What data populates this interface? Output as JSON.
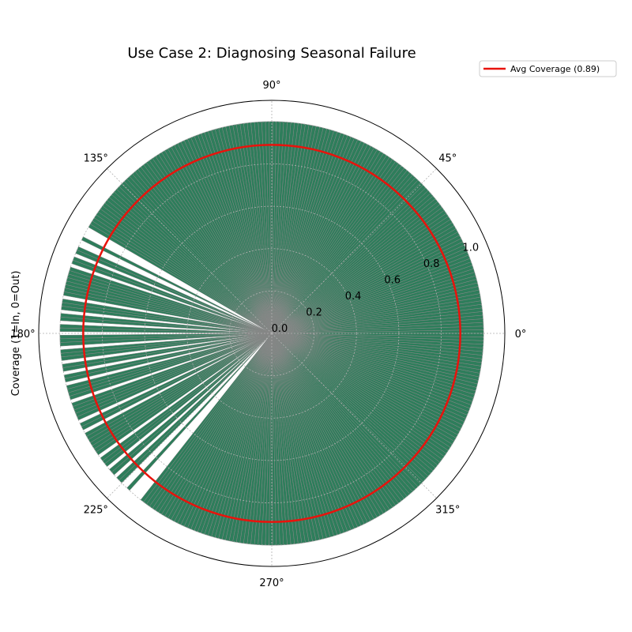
{
  "chart_data": {
    "type": "bar",
    "projection": "polar",
    "title": "Use Case 2: Diagnosing Seasonal Failure",
    "ylabel": "Coverage (1=In, 0=Out)",
    "ylim": [
      0.0,
      1.1
    ],
    "radial_ticks": [
      "0.0",
      "0.2",
      "0.4",
      "0.6",
      "0.8",
      "1.0"
    ],
    "radial_tick_values": [
      0.0,
      0.2,
      0.4,
      0.6,
      0.8,
      1.0
    ],
    "angle_ticks": [
      "0°",
      "45°",
      "90°",
      "135°",
      "180°",
      "225°",
      "270°",
      "315°"
    ],
    "angle_tick_values": [
      0,
      45,
      90,
      135,
      180,
      225,
      270,
      315
    ],
    "bar_count": 365,
    "bar_color": "#2e7d5b",
    "bar_edge_color": "#888888",
    "bar_value": 1.0,
    "out_of_coverage_ranges_deg": [
      [
        150.4,
        152.6
      ],
      [
        154.0,
        155.5
      ],
      [
        157.5,
        158.6
      ],
      [
        160.8,
        161.7
      ],
      [
        170.0,
        170.9
      ],
      [
        173.4,
        174.4
      ],
      [
        176.2,
        177.3
      ],
      [
        179.6,
        180.6
      ],
      [
        183.4,
        184.3
      ],
      [
        187.0,
        188.0
      ],
      [
        190.2,
        191.4
      ],
      [
        193.2,
        194.2
      ],
      [
        198.0,
        199.2
      ],
      [
        204.4,
        205.4
      ],
      [
        206.8,
        208.0
      ],
      [
        215.0,
        216.4
      ],
      [
        218.6,
        219.8
      ],
      [
        221.6,
        222.6
      ],
      [
        224.6,
        226.8
      ],
      [
        227.6,
        232.2
      ]
    ],
    "grid": true,
    "series": [
      {
        "name": "Avg Coverage (0.89)",
        "value": 0.89,
        "color": "#e8130c",
        "type": "line"
      }
    ],
    "legend_position": "top-right"
  }
}
